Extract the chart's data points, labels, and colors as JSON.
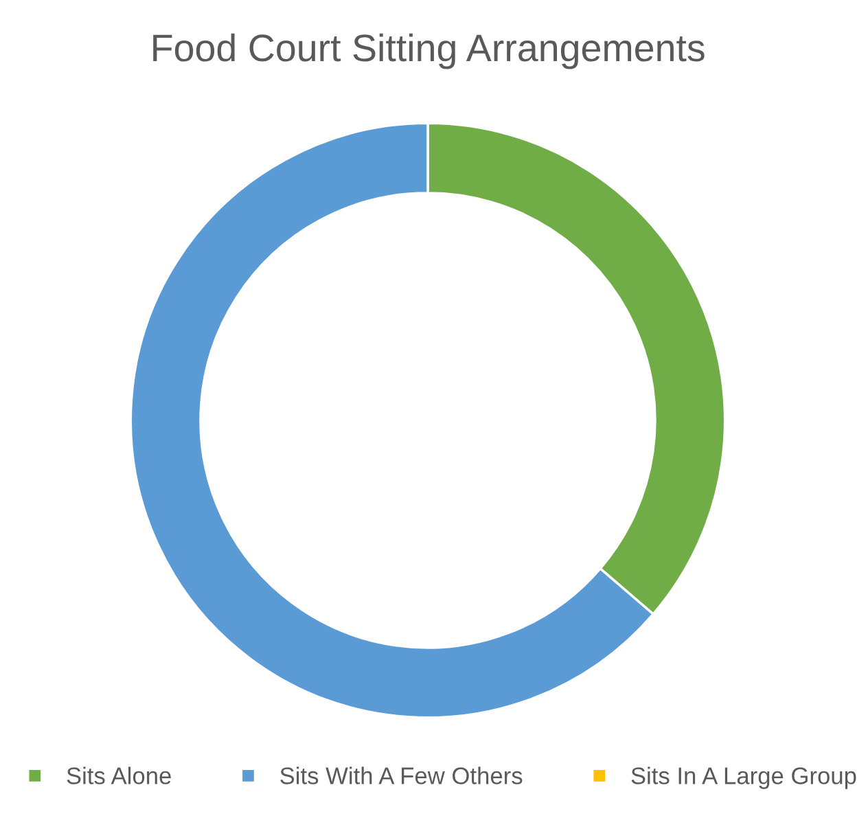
{
  "chart_data": {
    "type": "donut",
    "title": "Food Court Sitting Arrangements",
    "categories": [
      "Sits Alone",
      "Sits With A Few Others",
      "Sits In A Large Group"
    ],
    "values": [
      36.3,
      63.7,
      0
    ],
    "colors": [
      "#70ad47",
      "#5b9bd5",
      "#ffc000"
    ],
    "legend": "bottom"
  }
}
